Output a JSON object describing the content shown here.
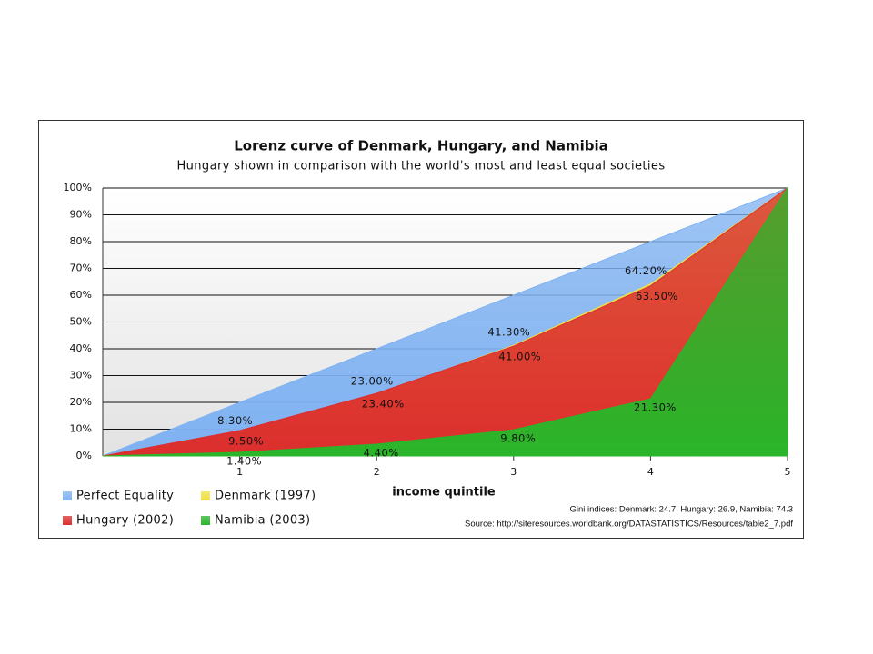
{
  "chart_data": {
    "type": "area",
    "title": "Lorenz curve of Denmark, Hungary, and Namibia",
    "subtitle": "Hungary shown in comparison with the world's most and least equal societies",
    "x_label": "income quintile",
    "annotations": [
      "Gini indices: Denmark: 24.7, Hungary: 26.9, Namibia: 74.3",
      "Source: http://siteresources.worldbank.org/DATASTATISTICS/Resources/table2_7.pdf"
    ],
    "x": [
      0,
      1,
      2,
      3,
      4,
      5
    ],
    "xlim": [
      0,
      5
    ],
    "xticks": [
      1,
      2,
      3,
      4,
      5
    ],
    "ylim": [
      0,
      100
    ],
    "yticks": [
      {
        "value": 0,
        "label": "0%"
      },
      {
        "value": 10,
        "label": "10%"
      },
      {
        "value": 20,
        "label": "20%"
      },
      {
        "value": 30,
        "label": "30%"
      },
      {
        "value": 40,
        "label": "40%"
      },
      {
        "value": 50,
        "label": "50%"
      },
      {
        "value": 60,
        "label": "60%"
      },
      {
        "value": 70,
        "label": "70%"
      },
      {
        "value": 80,
        "label": "80%"
      },
      {
        "value": 90,
        "label": "90%"
      },
      {
        "value": 100,
        "label": "100%"
      }
    ],
    "grid": true,
    "legend": "bottom-left",
    "series": [
      {
        "name": "Perfect Equality",
        "color": "#7fb2f2",
        "values": [
          0,
          20,
          40,
          60,
          80,
          100
        ]
      },
      {
        "name": "Denmark (1997)",
        "color": "#f0e040",
        "values": [
          0,
          8.3,
          23.0,
          41.3,
          64.2,
          100
        ],
        "value_labels": [
          null,
          "8.30%",
          "23.00%",
          "41.30%",
          "64.20%",
          null
        ]
      },
      {
        "name": "Hungary (2002)",
        "color": "#dc2e2e",
        "values": [
          0,
          9.5,
          23.4,
          41.0,
          63.5,
          100
        ],
        "value_labels": [
          null,
          "9.50%",
          "23.40%",
          "41.00%",
          "63.50%",
          null
        ]
      },
      {
        "name": "Namibia (2003)",
        "color": "#2ab52a",
        "values": [
          0,
          1.4,
          4.4,
          9.8,
          21.3,
          100
        ],
        "value_labels": [
          null,
          "1.40%",
          "4.40%",
          "9.80%",
          "21.30%",
          null
        ]
      }
    ]
  }
}
